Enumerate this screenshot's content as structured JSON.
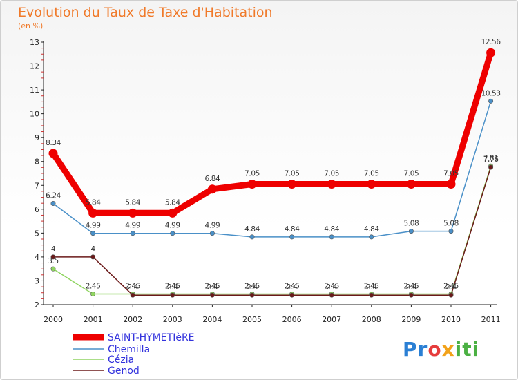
{
  "header": {
    "title": "Evolution du Taux de Taxe d'Habitation",
    "subtitle": "(en %)"
  },
  "logo": {
    "text": "Proxiti",
    "parts": [
      "Pr",
      "o",
      "x",
      "iti"
    ]
  },
  "chart_data": {
    "type": "line",
    "title": "Evolution du Taux de Taxe d'Habitation",
    "ylabel": "(en %)",
    "xlabel": "",
    "ylim": [
      2,
      13
    ],
    "yticks": [
      2,
      3,
      4,
      5,
      6,
      7,
      8,
      9,
      10,
      11,
      12,
      13
    ],
    "x": [
      "2000",
      "2001",
      "2002",
      "2003",
      "2004",
      "2005",
      "2006",
      "2007",
      "2008",
      "2009",
      "2010",
      "2011"
    ],
    "series": [
      {
        "name": "SAINT-HYMETIèRE",
        "color": "#ee0000",
        "thick": true,
        "values": [
          8.34,
          5.84,
          5.84,
          5.84,
          6.84,
          7.05,
          7.05,
          7.05,
          7.05,
          7.05,
          7.05,
          12.56
        ],
        "labels": [
          "8.34",
          "5.84",
          "5.84",
          "5.84",
          "6.84",
          "7.05",
          "7.05",
          "7.05",
          "7.05",
          "7.05",
          "7.05",
          "12.56"
        ]
      },
      {
        "name": "Chemilla",
        "color": "#4a90c8",
        "thick": false,
        "values": [
          6.24,
          4.99,
          4.99,
          4.99,
          4.99,
          4.84,
          4.84,
          4.84,
          4.84,
          5.08,
          5.08,
          10.53
        ],
        "labels": [
          "6.24",
          "4.99",
          "4.99",
          "4.99",
          "4.99",
          "4.84",
          "4.84",
          "4.84",
          "4.84",
          "5.08",
          "5.08",
          "10.53"
        ]
      },
      {
        "name": "Cézia",
        "color": "#8fd460",
        "thick": false,
        "values": [
          3.5,
          2.45,
          2.45,
          2.45,
          2.45,
          2.45,
          2.45,
          2.45,
          2.45,
          2.45,
          2.45,
          7.81
        ],
        "labels": [
          "3.5",
          "2.45",
          "2.45",
          "2.45",
          "2.45",
          "2.45",
          "2.45",
          "2.45",
          "2.45",
          "2.45",
          "2.45",
          "7.81"
        ]
      },
      {
        "name": "Genod",
        "color": "#6b1a1a",
        "thick": false,
        "values": [
          4,
          4,
          2.4,
          2.4,
          2.4,
          2.4,
          2.4,
          2.4,
          2.4,
          2.4,
          2.4,
          7.76
        ],
        "labels": [
          "4",
          "4",
          "2.4",
          "2.4",
          "2.4",
          "2.4",
          "2.4",
          "2.4",
          "2.4",
          "2.4",
          "2.4",
          "7.76"
        ]
      }
    ],
    "legend": [
      "SAINT-HYMETIèRE",
      "Chemilla",
      "Cézia",
      "Genod"
    ]
  }
}
